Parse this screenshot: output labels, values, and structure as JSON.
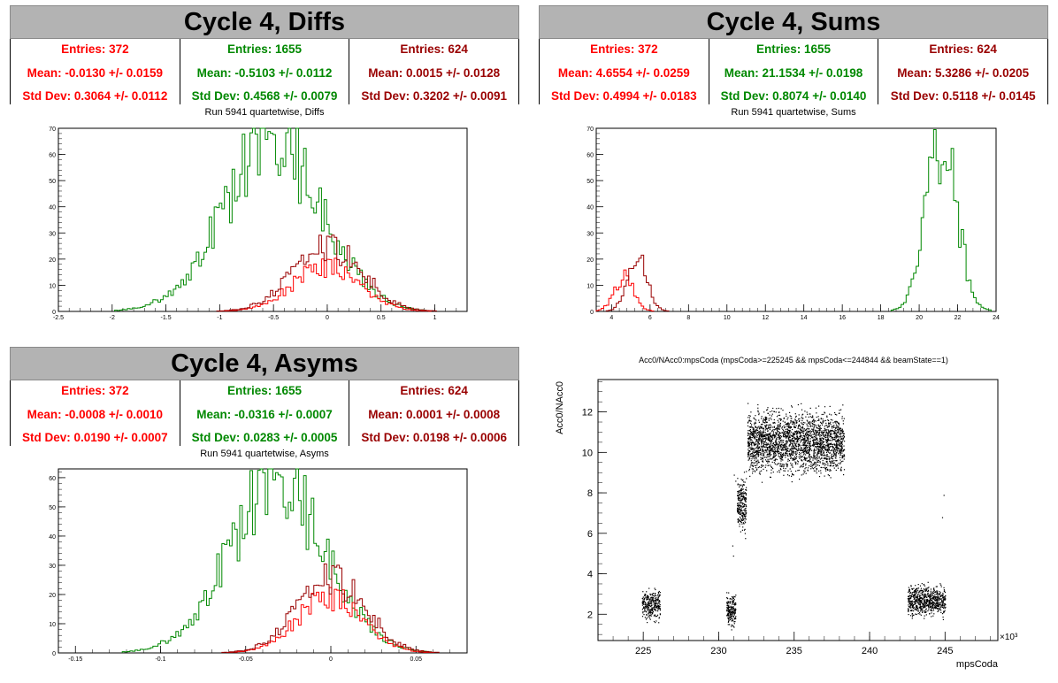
{
  "panels": {
    "diffs": {
      "title": "Cycle 4, Diffs",
      "subtitle": "Run 5941 quartetwise, Diffs",
      "stats": [
        {
          "entries": "Entries: 372",
          "mean": "Mean: -0.0130 +/- 0.0159",
          "std": "Std Dev: 0.3064 +/- 0.0112",
          "color": "#ff0000"
        },
        {
          "entries": "Entries: 1655",
          "mean": "Mean: -0.5103 +/- 0.0112",
          "std": "Std Dev: 0.4568 +/- 0.0079",
          "color": "#008800"
        },
        {
          "entries": "Entries: 624",
          "mean": "Mean: 0.0015 +/- 0.0128",
          "std": "Std Dev: 0.3202 +/- 0.0091",
          "color": "#990000"
        }
      ]
    },
    "sums": {
      "title": "Cycle 4, Sums",
      "subtitle": "Run 5941 quartetwise, Sums",
      "stats": [
        {
          "entries": "Entries: 372",
          "mean": "Mean: 4.6554 +/- 0.0259",
          "std": "Std Dev: 0.4994 +/- 0.0183",
          "color": "#ff0000"
        },
        {
          "entries": "Entries: 1655",
          "mean": "Mean: 21.1534 +/- 0.0198",
          "std": "Std Dev: 0.8074 +/- 0.0140",
          "color": "#008800"
        },
        {
          "entries": "Entries: 624",
          "mean": "Mean: 5.3286 +/- 0.0205",
          "std": "Std Dev: 0.5118 +/- 0.0145",
          "color": "#990000"
        }
      ]
    },
    "asyms": {
      "title": "Cycle 4, Asyms",
      "subtitle": "Run 5941 quartetwise, Asyms",
      "stats": [
        {
          "entries": "Entries: 372",
          "mean": "Mean: -0.0008 +/- 0.0010",
          "std": "Std Dev: 0.0190 +/- 0.0007",
          "color": "#ff0000"
        },
        {
          "entries": "Entries: 1655",
          "mean": "Mean: -0.0316 +/- 0.0007",
          "std": "Std Dev: 0.0283 +/- 0.0005",
          "color": "#008800"
        },
        {
          "entries": "Entries: 624",
          "mean": "Mean: 0.0001 +/- 0.0008",
          "std": "Std Dev: 0.0198 +/- 0.0006",
          "color": "#990000"
        }
      ]
    },
    "scatter": {
      "title": "Acc0/NAcc0:mpsCoda (mpsCoda>=225245 && mpsCoda<=244844 && beamState==1)",
      "ylabel": "Acc0/NAcc0",
      "xlabel": "mpsCoda",
      "exponent": "×10³"
    }
  },
  "chart_data": [
    {
      "type": "histogram",
      "id": "diffs",
      "xlim": [
        -2.5,
        1.3
      ],
      "ylim": [
        0,
        70
      ],
      "xticks": [
        -2.5,
        -2,
        -1.5,
        -1,
        -0.5,
        0,
        0.5,
        1
      ],
      "xtick_labels": [
        "-2.5",
        "-2",
        "-1.5",
        "-1",
        "-0.5",
        "0",
        "0.5",
        "1"
      ],
      "yticks": [
        0,
        10,
        20,
        30,
        40,
        50,
        60,
        70
      ],
      "series": [
        {
          "color": "#008800",
          "mean": -0.5103,
          "std": 0.4568,
          "peak": 67
        },
        {
          "color": "#ff0000",
          "mean": -0.013,
          "std": 0.3064,
          "peak": 18
        },
        {
          "color": "#990000",
          "mean": 0.0015,
          "std": 0.3202,
          "peak": 26
        }
      ]
    },
    {
      "type": "histogram",
      "id": "sums",
      "xlim": [
        3.2,
        24
      ],
      "ylim": [
        0,
        70
      ],
      "xticks": [
        4,
        6,
        8,
        10,
        12,
        14,
        16,
        18,
        20,
        22,
        24
      ],
      "xtick_labels": [
        "4",
        "6",
        "8",
        "10",
        "12",
        "14",
        "16",
        "18",
        "20",
        "22",
        "24"
      ],
      "yticks": [
        0,
        10,
        20,
        30,
        40,
        50,
        60,
        70
      ],
      "series": [
        {
          "color": "#008800",
          "mean": 21.1534,
          "std": 0.8074,
          "peak": 66
        },
        {
          "color": "#ff0000",
          "mean": 4.6554,
          "std": 0.4994,
          "peak": 14
        },
        {
          "color": "#990000",
          "mean": 5.3286,
          "std": 0.5118,
          "peak": 21
        }
      ]
    },
    {
      "type": "histogram",
      "id": "asyms",
      "xlim": [
        -0.16,
        0.08
      ],
      "ylim": [
        0,
        63
      ],
      "xticks": [
        -0.15,
        -0.1,
        -0.05,
        0,
        0.05
      ],
      "xtick_labels": [
        "-0.15",
        "-0.1",
        "-0.05",
        "0",
        "0.05"
      ],
      "yticks": [
        0,
        10,
        20,
        30,
        40,
        50,
        60
      ],
      "series": [
        {
          "color": "#008800",
          "mean": -0.0316,
          "std": 0.0283,
          "peak": 60
        },
        {
          "color": "#ff0000",
          "mean": -0.0008,
          "std": 0.019,
          "peak": 20
        },
        {
          "color": "#990000",
          "mean": 0.0001,
          "std": 0.0198,
          "peak": 27
        }
      ]
    },
    {
      "type": "scatter",
      "id": "scatter",
      "xlim": [
        222,
        248.5
      ],
      "ylim": [
        0.7,
        13.6
      ],
      "xticks": [
        225,
        230,
        235,
        240,
        245
      ],
      "xtick_labels": [
        "225",
        "230",
        "235",
        "240",
        "245"
      ],
      "yticks": [
        2,
        4,
        6,
        8,
        10,
        12
      ],
      "ytick_labels": [
        "2",
        "4",
        "6",
        "8",
        "10",
        "12"
      ],
      "clusters": [
        {
          "x": [
            224.9,
            226.1
          ],
          "y_center": 2.5,
          "y_spread": 0.35,
          "n": 300
        },
        {
          "x": [
            230.5,
            231.1
          ],
          "y_center": 2.2,
          "y_spread": 0.35,
          "n": 200
        },
        {
          "x": [
            231.2,
            231.8
          ],
          "y_center": 7.4,
          "y_spread": 0.6,
          "n": 250
        },
        {
          "x": [
            231.9,
            238.3
          ],
          "y_center": 10.5,
          "y_spread": 0.7,
          "n": 2500
        },
        {
          "x": [
            242.5,
            245.0
          ],
          "y_center": 2.7,
          "y_spread": 0.35,
          "n": 700
        }
      ]
    }
  ]
}
